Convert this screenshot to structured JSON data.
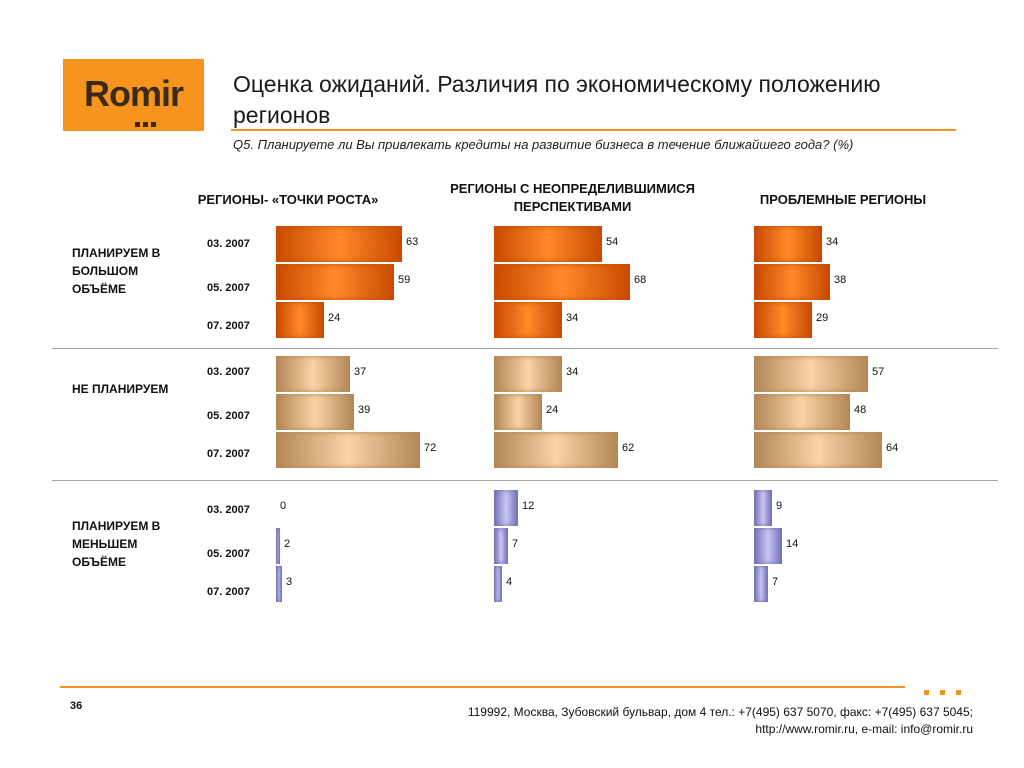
{
  "logo": {
    "text": "Romir"
  },
  "header": {
    "title": "Оценка ожиданий. Различия по экономическому положению регионов",
    "question": "Q5. Планируете ли Вы привлекать кредиты на развитие бизнеса в течение ближайшего года? (%)"
  },
  "footer": {
    "page": "36",
    "address_line1": "119992, Москва, Зубовский бульвар, дом 4   тел.: +7(495) 637 5070, факс: +7(495) 637 5045;",
    "address_line2": "http://www.romir.ru, e-mail: info@romir.ru"
  },
  "colors": {
    "accent": "#f7941d",
    "large": "#d35400",
    "none": "#c0956a",
    "smaller": "#8a88c8"
  },
  "chart_data": {
    "type": "bar",
    "orientation": "horizontal",
    "title": "Оценка ожиданий. Различия по экономическому положению регионов",
    "subtitle": "Q5. Планируете ли Вы привлекать кредиты на развитие бизнеса в течение ближайшего года? (%)",
    "periods": [
      "03. 2007",
      "05. 2007",
      "07. 2007"
    ],
    "regions": [
      "РЕГИОНЫ- «ТОЧКИ РОСТА»",
      "РЕГИОНЫ   С НЕОПРЕДЕЛИВШИМИСЯ ПЕРСПЕКТИВАМИ",
      "ПРОБЛЕМНЫЕ РЕГИОНЫ"
    ],
    "answers": [
      {
        "label": "ПЛАНИРУЕМ В БОЛЬШОМ ОБЪЁМЕ",
        "values": [
          [
            63,
            59,
            24
          ],
          [
            54,
            68,
            34
          ],
          [
            34,
            38,
            29
          ]
        ]
      },
      {
        "label": "НЕ ПЛАНИРУЕМ",
        "values": [
          [
            37,
            39,
            72
          ],
          [
            34,
            24,
            62
          ],
          [
            57,
            48,
            64
          ]
        ]
      },
      {
        "label": "ПЛАНИРУЕМ В МЕНЬШЕМ ОБЪЁМЕ",
        "values": [
          [
            0,
            2,
            3
          ],
          [
            12,
            7,
            4
          ],
          [
            9,
            14,
            7
          ]
        ]
      }
    ]
  }
}
